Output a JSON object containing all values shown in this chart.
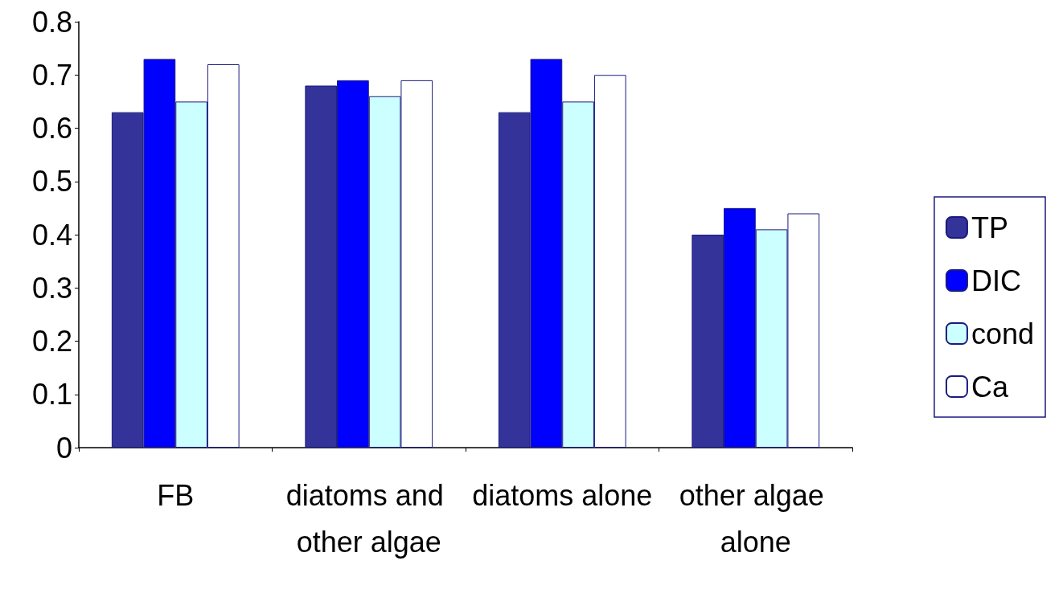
{
  "chart_data": {
    "type": "bar",
    "categories": [
      "FB",
      "diatoms and other algae",
      "diatoms alone",
      "other algae alone"
    ],
    "series": [
      {
        "name": "TP",
        "color": "#333399",
        "values": [
          0.63,
          0.68,
          0.63,
          0.4
        ]
      },
      {
        "name": "DIC",
        "color": "#0000ff",
        "values": [
          0.73,
          0.69,
          0.73,
          0.45
        ]
      },
      {
        "name": "cond",
        "color": "#ccffff",
        "values": [
          0.65,
          0.66,
          0.65,
          0.41
        ]
      },
      {
        "name": "Ca",
        "color": "#ffffff",
        "values": [
          0.72,
          0.69,
          0.7,
          0.44
        ]
      }
    ],
    "ylim": [
      0,
      0.8
    ],
    "yticks": [
      0,
      0.1,
      0.2,
      0.3,
      0.4,
      0.5,
      0.6,
      0.7,
      0.8
    ],
    "grid": false,
    "legend": "right"
  }
}
